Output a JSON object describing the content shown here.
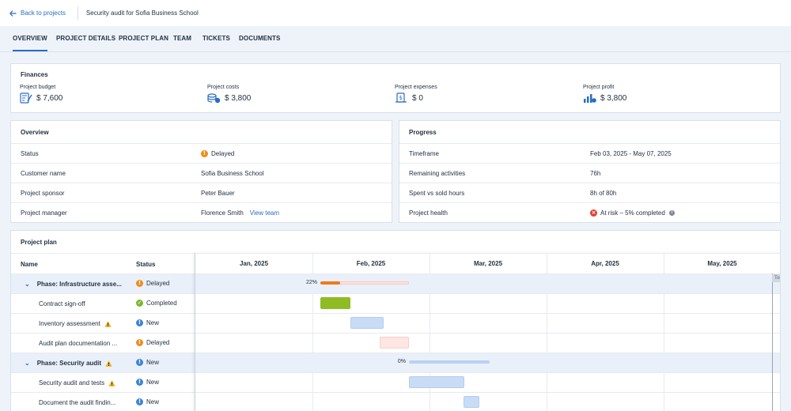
{
  "topbar": {
    "back_label": "Back to projects",
    "title": "Security audit for Sofia Business School"
  },
  "tabs": [
    {
      "label": "OVERVIEW",
      "active": true
    },
    {
      "label": "PROJECT DETAILS",
      "active": false
    },
    {
      "label": "PROJECT PLAN",
      "active": false
    },
    {
      "label": "TEAM",
      "active": false
    },
    {
      "label": "TICKETS",
      "active": false
    },
    {
      "label": "DOCUMENTS",
      "active": false
    }
  ],
  "finances": {
    "title": "Finances",
    "items": [
      {
        "label": "Project budget",
        "value": "$ 7,600",
        "icon": "budget-icon"
      },
      {
        "label": "Project costs",
        "value": "$ 3,800",
        "icon": "coins-icon"
      },
      {
        "label": "Project expenses",
        "value": "$ 0",
        "icon": "expenses-icon"
      },
      {
        "label": "Project profit",
        "value": "$ 3,800",
        "icon": "profit-chart-icon"
      }
    ]
  },
  "overview": {
    "title": "Overview",
    "rows": [
      {
        "key": "Status",
        "value": "Delayed",
        "status": "orange"
      },
      {
        "key": "Customer name",
        "value": "Sofia Business School"
      },
      {
        "key": "Project sponsor",
        "value": "Peter Bauer"
      },
      {
        "key": "Project manager",
        "value": "Florence Smith",
        "link": "View team"
      }
    ]
  },
  "progress": {
    "title": "Progress",
    "rows": [
      {
        "key": "Timeframe",
        "value": "Feb 03, 2025 - May 07, 2025"
      },
      {
        "key": "Remaining activities",
        "value": "76h"
      },
      {
        "key": "Spent vs sold hours",
        "value": "8h of 80h"
      },
      {
        "key": "Project health",
        "value": "At risk – 5% completed",
        "status": "red"
      }
    ]
  },
  "plan": {
    "title": "Project plan",
    "col_name": "Name",
    "col_status": "Status",
    "months": [
      "Jan, 2025",
      "Feb, 2025",
      "Mar, 2025",
      "Apr, 2025",
      "May, 2025"
    ],
    "today_label": "Today",
    "rows": [
      {
        "name": "Phase: Infrastructure asse...",
        "status": "Delayed",
        "status_color": "orange",
        "phase": true,
        "warn": false,
        "progress_pct": 22,
        "progress_label": "22%"
      },
      {
        "name": "Contract sign-off",
        "status": "Completed",
        "status_color": "green",
        "phase": false,
        "warn": false
      },
      {
        "name": "Inventory assessment",
        "status": "New",
        "status_color": "blue",
        "phase": false,
        "warn": true
      },
      {
        "name": "Audit plan documentation ...",
        "status": "Delayed",
        "status_color": "orange",
        "phase": false,
        "warn": false
      },
      {
        "name": "Phase: Security audit",
        "status": "New",
        "status_color": "blue",
        "phase": true,
        "warn": true,
        "progress_pct": 0,
        "progress_label": "0%"
      },
      {
        "name": "Security audit and tests",
        "status": "New",
        "status_color": "blue",
        "phase": false,
        "warn": true
      },
      {
        "name": "Document the audit findin...",
        "status": "New",
        "status_color": "blue",
        "phase": false,
        "warn": false
      }
    ]
  },
  "colors": {
    "accent": "#2b6cc4",
    "delayed": "#f08c1a",
    "completed": "#7cb82a",
    "new": "#3d84d6",
    "at_risk": "#e3402f"
  }
}
